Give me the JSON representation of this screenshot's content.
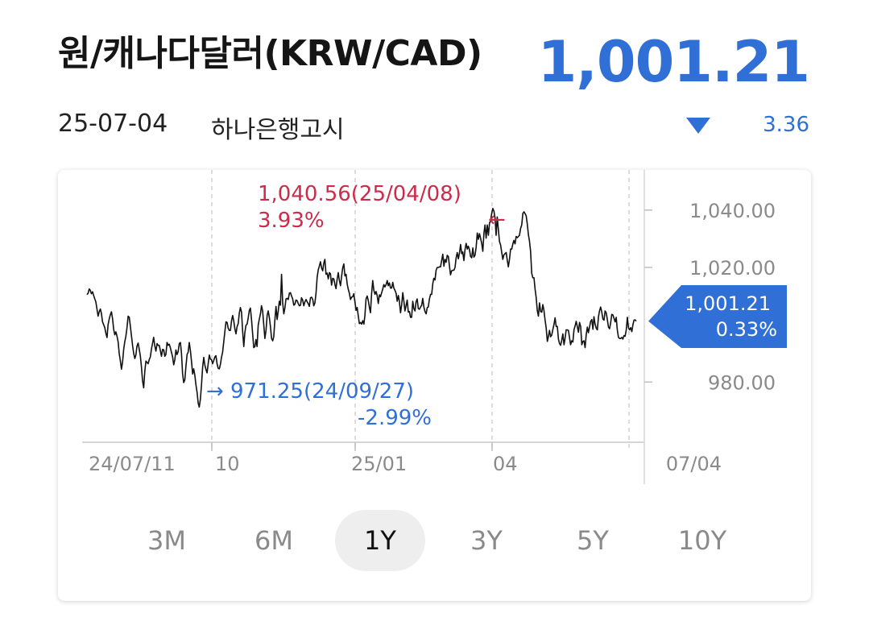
{
  "header": {
    "title": "원/캐나다달러(KRW/CAD)",
    "price": "1,001.21",
    "date": "25-07-04",
    "source": "하나은행고시",
    "change": "3.36",
    "direction_icon": "triangle-down-icon",
    "colors": {
      "accent_blue": "#2f6fd6",
      "high_red": "#cc2b4a"
    }
  },
  "ranges": {
    "items": [
      "3M",
      "6M",
      "1Y",
      "3Y",
      "5Y",
      "10Y"
    ],
    "selected": "1Y"
  },
  "chart_data": {
    "type": "line",
    "y_ticks": [
      "1,040.00",
      "1,020.00",
      "980.00"
    ],
    "y_tick_values": [
      1040,
      1020,
      980
    ],
    "x_ticks": [
      "24/07/11",
      "10",
      "25/01",
      "04",
      "07/04"
    ],
    "ylim": [
      959,
      1054
    ],
    "grid": "dashed vertical lines at month ticks",
    "current": {
      "value": "1,001.21",
      "pct": "0.33%"
    },
    "high": {
      "label": "1,040.56(25/04/08)",
      "pct": "3.93%",
      "arrow": "←"
    },
    "low": {
      "label": "971.25(24/09/27)",
      "pct": "-2.99%",
      "arrow": "→"
    },
    "series": [
      {
        "x_start": "24/07/11",
        "x_end": "25/07/04",
        "values": [
          1010.5,
          1011,
          1012.5,
          1012,
          1010.8,
          1011.5,
          1010.2,
          1009,
          1008,
          1005.5,
          1003,
          1004.5,
          1005.5,
          1004,
          1001,
          1000,
          999,
          997,
          995.5,
          1000,
          1002,
          1003.5,
          1004.5,
          1002,
          998.5,
          996.5,
          997.5,
          996,
          994,
          990,
          987.5,
          984.5,
          987,
          991.5,
          994,
          996,
          999,
          1003,
          1002.6,
          999.6,
          996.2,
          992.8,
          990,
          988.2,
          989.4,
          992.6,
          993.6,
          991.4,
          989,
          985.4,
          980.4,
          978,
          983.8,
          987.3,
          986.8,
          986.4,
          987.8,
          988.8,
          991.6,
          993.6,
          995.6,
          992.6,
          990.8,
          993.4,
          992.8,
          992.8,
          991,
          989,
          991.4,
          991.2,
          989,
          989.6,
          993.8,
          992.8,
          993.2,
          992,
          990.4,
          988.8,
          986,
          987.8,
          991.2,
          989.6,
          990.6,
          993.4,
          993.8,
          990.2,
          983,
          979.8,
          980.8,
          985.6,
          989.6,
          990.4,
          993.8,
          991,
          987.2,
          982.8,
          984.6,
          982.4,
          979,
          976.4,
          972.6,
          971.25,
          974,
          979,
          985.2,
          988.6,
          986,
          984.4,
          983.2,
          986.4,
          989.4,
          988,
          987.8,
          986.4,
          987.5,
          988.8,
          989.2,
          986.4,
          984.8,
          984.6,
          986.2,
          988.6,
          990.4,
          994,
          997.6,
          1001,
          1000.8,
          998.8,
          998,
          998,
          1001.4,
          1003.2,
          1001.4,
          998.6,
          996.8,
          999.4,
          1000.4,
          1004,
          1006,
          1004.4,
          997.6,
          992.4,
          997.2,
          999.8,
          1000.2,
          1002.4,
          1005,
          1005.8,
          1001.8,
          996.8,
          992,
          992.4,
          994.8,
          992.4,
          999.8,
          1002,
          1003.8,
          1006.6,
          1004.8,
          1000,
          995.2,
          998,
          1003.2,
          1004.8,
          1002.6,
          999.4,
          995.2,
          994.4,
          995.8,
          1001.6,
          1006.4,
          1001.8,
          1004.8,
          1008.2,
          1006.8,
          1017.6,
          1007.6,
          1003.8,
          1005.8,
          1009,
          1009.2,
          1008.8,
          1011,
          1011.2,
          1010,
          1009,
          1006.8,
          1007.2,
          1008.6,
          1008.4,
          1007.4,
          1006.6,
          1006.8,
          1009.4,
          1008.6,
          1006.6,
          1008,
          1008.8,
          1008,
          1007.4,
          1006.4,
          1009.4,
          1009.6,
          1008.8,
          1006.6,
          1007.6,
          1011,
          1016.6,
          1019.2,
          1020.4,
          1022,
          1019.8,
          1018.8,
          1021.6,
          1022.8,
          1017.6,
          1018,
          1016,
          1018.2,
          1017.8,
          1013.8,
          1016.2,
          1016,
          1014,
          1012.6,
          1015.8,
          1018.2,
          1015.4,
          1013.6,
          1016.8,
          1019.8,
          1021.2,
          1017,
          1017.6,
          1014.2,
          1012.4,
          1011,
          1008.8,
          1009.6,
          1009.8,
          1010.8,
          1008,
          1005,
          1006,
          1003,
          1000.4,
          1000.8,
          1000.2,
          1001.4,
          1000.2,
          1003.2,
          1009,
          1010,
          1008.4,
          1006,
          1004.2,
          1010.8,
          1015.4,
          1012,
          1010.6,
          1011.6,
          1010.2,
          1007.4,
          1010.4,
          1009.8,
          1011.2,
          1012.4,
          1014,
          1013.2,
          1014,
          1015.4,
          1013.6,
          1014.6,
          1012.8,
          1012.8,
          1014.8,
          1012.8,
          1012,
          1011,
          1008.2,
          1010.2,
          1008.2,
          1004.2,
          1006.8,
          1011.2,
          1008.2,
          1004.8,
          1006.6,
          1008.6,
          1004.4,
          1004.6,
          1002.6,
          1002.6,
          1008.2,
          1005.6,
          1004.8,
          1008,
          1009,
          1005.6,
          1005.4,
          1006.2,
          1006.8,
          1009.2,
          1006.2,
          1004.6,
          1003.8,
          1006,
          1006.2,
          1009,
          1010.6,
          1010.6,
          1014.4,
          1016.2,
          1015.6,
          1019,
          1020,
          1020,
          1020.2,
          1020.2,
          1022.4,
          1024.6,
          1020.4,
          1022.8,
          1021.8,
          1024.2,
          1023.8,
          1020.4,
          1017.4,
          1018.8,
          1019,
          1019,
          1020,
          1023.2,
          1025.2,
          1023,
          1025,
          1028,
          1024.8,
          1025.4,
          1022.4,
          1026.2,
          1028.4,
          1026.4,
          1027.4,
          1026.2,
          1023.8,
          1023.4,
          1026.8,
          1023.6,
          1024.2,
          1027,
          1032,
          1029.8,
          1031.8,
          1030.2,
          1028.4,
          1025.6,
          1032,
          1034.8,
          1030.2,
          1034.8,
          1031.2,
          1035.4,
          1036.4,
          1038.8,
          1040.56,
          1039.6,
          1037.2,
          1031.2,
          1037.6,
          1033.2,
          1029,
          1027.8,
          1025.2,
          1022.8,
          1024.4,
          1024.8,
          1025.2,
          1022.4,
          1020.2,
          1022.8,
          1026.4,
          1026.4,
          1028.2,
          1029.4,
          1028.2,
          1030.8,
          1030.4,
          1030.8,
          1031.2,
          1033.6,
          1034.8,
          1038.8,
          1039.4,
          1038.8,
          1038,
          1035.2,
          1031.4,
          1029,
          1025.6,
          1018,
          1016.4,
          1016.4,
          1012.4,
          1009.6,
          1005,
          1003,
          1007.6,
          1004.6,
          1004.4,
          1007,
          1005,
          1001.6,
          998.8,
          994.2,
          995.8,
          998,
          995.8,
          996.4,
          998.4,
          1000,
          1002.4,
          999.4,
          999.4,
          995,
          993.4,
          992.8,
          994.6,
          996.8,
          993,
          995.2,
          998.2,
          998.2,
          998,
          995.4,
          993,
          994.4,
          994,
          998.2,
          999.6,
          1001.2,
          999.4,
          997.4,
          1000.8,
          999.4,
          993,
          994.2,
          994.4,
          992,
          996.6,
          999.2,
          997.2,
          999.2,
          1001.2,
          1001.8,
          998.4,
          1002.8,
          1000.2,
          998.8,
          998.2,
          1002.8,
          1004.8,
          1006.2,
          1004.4,
          1002,
          1001.6,
          1004.8,
          1004.2,
          1001.8,
          999.2,
          998.6,
          1000.6,
          1003.6,
          1003.4,
          1002.2,
          1001,
          1002.6,
          998.2,
          995.6,
          995.2,
          995.2,
          995.6,
          995,
          996.2,
          996,
          998.2,
          1002.6,
          999,
          998.2,
          999,
          997.6,
          1000,
          1001.6,
          1001.7,
          1001.21
        ]
      }
    ]
  }
}
